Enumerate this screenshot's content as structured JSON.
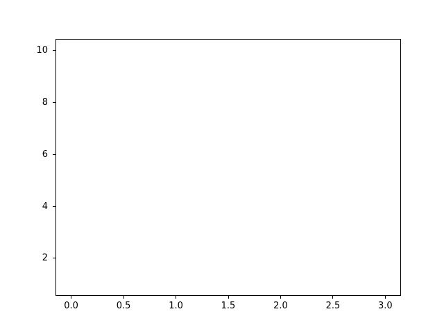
{
  "figure": {
    "background_color": "#ffffff",
    "axes_background_color": "#ffffff",
    "spine_color": "#000000",
    "tick_color": "#000000",
    "tick_label_color": "#000000"
  },
  "chart_data": {
    "type": "line",
    "title": "",
    "xlabel": "",
    "ylabel": "",
    "series": [],
    "xlim": [
      -0.15,
      3.15
    ],
    "ylim": [
      0.55,
      10.45
    ],
    "xticks": [
      0.0,
      0.5,
      1.0,
      1.5,
      2.0,
      2.5,
      3.0
    ],
    "xtick_labels": [
      "0.0",
      "0.5",
      "1.0",
      "1.5",
      "2.0",
      "2.5",
      "3.0"
    ],
    "yticks": [
      2,
      4,
      6,
      8,
      10
    ],
    "ytick_labels": [
      "2",
      "4",
      "6",
      "8",
      "10"
    ],
    "grid": false,
    "legend": null
  }
}
